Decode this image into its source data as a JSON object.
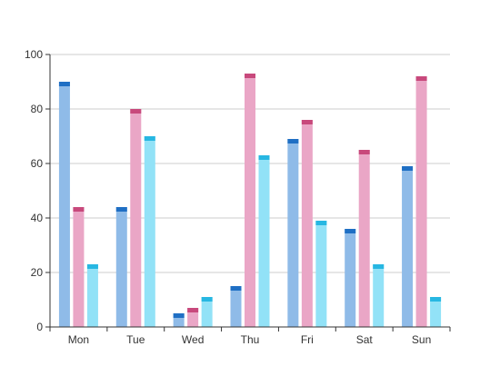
{
  "chart_data": {
    "type": "bar",
    "categories": [
      "Mon",
      "Tue",
      "Wed",
      "Thu",
      "Fri",
      "Sat",
      "Sun"
    ],
    "series": [
      {
        "values": [
          90,
          44,
          5,
          15,
          69,
          36,
          59
        ],
        "color_fill": "#8fbbe8",
        "color_cap": "#1f6fc4"
      },
      {
        "values": [
          44,
          80,
          7,
          93,
          76,
          65,
          92
        ],
        "color_fill": "#eaa6c6",
        "color_cap": "#c8497c"
      },
      {
        "values": [
          23,
          70,
          11,
          63,
          39,
          23,
          11
        ],
        "color_fill": "#92e2f7",
        "color_cap": "#27b7e2"
      }
    ],
    "ylim": [
      0,
      100
    ],
    "yticks": [
      "0",
      "20",
      "40",
      "60",
      "80",
      "100"
    ],
    "grid": true,
    "title": "",
    "xlabel": "",
    "ylabel": ""
  }
}
